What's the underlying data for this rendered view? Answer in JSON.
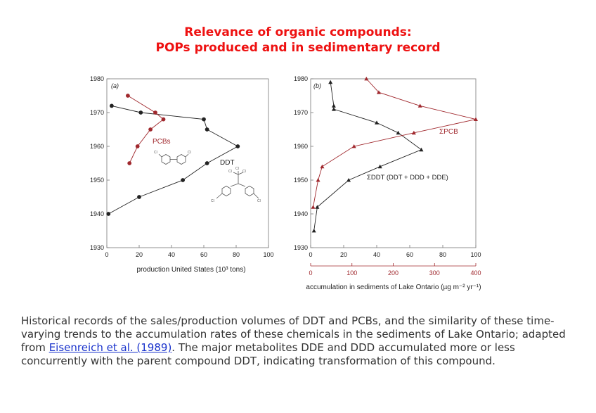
{
  "title_line1": "Relevance of organic compounds:",
  "title_line2": "POPs produced and in sedimentary record",
  "colors": {
    "title": "#ee1111",
    "pcb": "#a0282d",
    "ddt": "#222222",
    "link": "#1a33cc"
  },
  "caption": {
    "before": "Historical records of the sales/production volumes of DDT and PCBs, and the similarity of these time-varying trends to the accumulation rates of these chemicals in the sediments of Lake Ontario; adapted from ",
    "link": "Eisenreich et al. (1989)",
    "after": ". The major metabolites DDE and DDD accumulated more or less concurrently with the parent compound DDT, indicating transformation of this compound."
  },
  "chart_data": [
    {
      "type": "line",
      "panel": "(a)",
      "xlabel": "production United States (10³ tons)",
      "xlim": [
        0,
        100
      ],
      "ylim": [
        1930,
        1980
      ],
      "xticks": [
        0,
        20,
        40,
        60,
        80,
        100
      ],
      "yticks": [
        1930,
        1940,
        1950,
        1960,
        1970,
        1980
      ],
      "series": [
        {
          "name": "DDT",
          "color": "#222222",
          "marker": "circle",
          "points": [
            [
              3,
              1972
            ],
            [
              21,
              1970
            ],
            [
              60,
              1968
            ],
            [
              62,
              1965
            ],
            [
              81,
              1960
            ],
            [
              62,
              1955
            ],
            [
              47,
              1950
            ],
            [
              20,
              1945
            ],
            [
              1,
              1940
            ]
          ]
        },
        {
          "name": "PCBs",
          "color": "#a0282d",
          "marker": "circle",
          "points": [
            [
              13,
              1975
            ],
            [
              30,
              1970
            ],
            [
              35,
              1968
            ],
            [
              27,
              1965
            ],
            [
              19,
              1960
            ],
            [
              14,
              1955
            ]
          ]
        }
      ]
    },
    {
      "type": "line",
      "panel": "(b)",
      "xlabel": "accumulation in sediments of Lake Ontario (µg m⁻² yr⁻¹)",
      "xlim": [
        0,
        100
      ],
      "ylim": [
        1930,
        1980
      ],
      "xticks": [
        0,
        20,
        40,
        60,
        80,
        100
      ],
      "yticks": [
        1930,
        1940,
        1950,
        1960,
        1970,
        1980
      ],
      "x2ticks": [
        0,
        100,
        200,
        300,
        400
      ],
      "x2lim": [
        0,
        400
      ],
      "series": [
        {
          "name": "ΣDDT (DDT + DDD + DDE)",
          "color": "#222222",
          "marker": "triangle",
          "axis": "bottom",
          "points": [
            [
              12,
              1979
            ],
            [
              14,
              1972
            ],
            [
              14,
              1971
            ],
            [
              40,
              1967
            ],
            [
              53,
              1964
            ],
            [
              67,
              1959
            ],
            [
              42,
              1954
            ],
            [
              23,
              1950
            ],
            [
              4,
              1942
            ],
            [
              2,
              1935
            ]
          ]
        },
        {
          "name": "ΣPCB",
          "color": "#a0282d",
          "marker": "triangle",
          "axis": "x2",
          "points": [
            [
              135,
              1980
            ],
            [
              165,
              1976
            ],
            [
              265,
              1972
            ],
            [
              400,
              1968
            ],
            [
              250,
              1964
            ],
            [
              105,
              1960
            ],
            [
              28,
              1954
            ],
            [
              18,
              1950
            ],
            [
              6,
              1942
            ]
          ]
        }
      ]
    }
  ]
}
